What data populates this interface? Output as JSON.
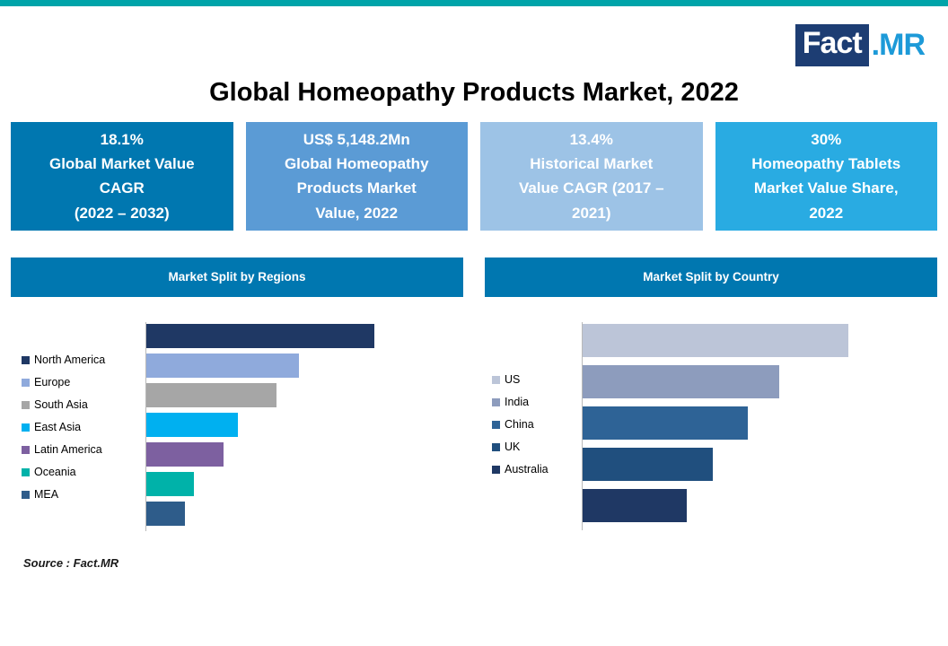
{
  "page": {
    "title": "Global Homeopathy Products Market, 2022",
    "source": "Source : Fact.MR"
  },
  "brand": {
    "fact": "Fact",
    "mr": ".MR"
  },
  "accent_colors": {
    "top_strip": "#00a4a9",
    "primary_teal_blue": "#0077b0",
    "bright_cyan": "#29abe2"
  },
  "stats": [
    {
      "text": "18.1%\nGlobal Market Value\nCAGR\n(2022 – 2032)",
      "bg": "#0077b0"
    },
    {
      "text": "US$ 5,148.2Mn\nGlobal Homeopathy\nProducts Market\nValue, 2022",
      "bg": "#5b9bd5"
    },
    {
      "text": "13.4%\nHistorical Market\nValue CAGR (2017 –\n2021)",
      "bg": "#9dc3e6"
    },
    {
      "text": "30%\nHomeopathy Tablets\nMarket Value Share,\n2022",
      "bg": "#29abe2"
    }
  ],
  "chart_data": [
    {
      "type": "bar",
      "orientation": "horizontal",
      "title": "Market Split by Regions",
      "categories": [
        "North America",
        "Europe",
        "South Asia",
        "East Asia",
        "Latin America",
        "Oceania",
        "MEA"
      ],
      "values": [
        100,
        67,
        57,
        40,
        34,
        21,
        17
      ],
      "colors": [
        "#1f3864",
        "#8faadc",
        "#a6a6a6",
        "#00b0f0",
        "#7d60a0",
        "#00b2a9",
        "#2e5c8a"
      ],
      "legend_position": "left",
      "grid": false,
      "value_labels_shown": false,
      "values_note": "relative bar lengths (% of longest bar), no numeric labels shown"
    },
    {
      "type": "bar",
      "orientation": "horizontal",
      "title": "Market Split by Country",
      "categories": [
        "US",
        "India",
        "China",
        "UK",
        "Australia"
      ],
      "values": [
        100,
        74,
        62,
        49,
        39
      ],
      "colors": [
        "#bcc5d8",
        "#8d9cbd",
        "#2e6396",
        "#204f7e",
        "#1f3864"
      ],
      "legend_position": "left",
      "grid": false,
      "value_labels_shown": false,
      "values_note": "relative bar lengths (% of longest bar), no numeric labels shown"
    }
  ]
}
